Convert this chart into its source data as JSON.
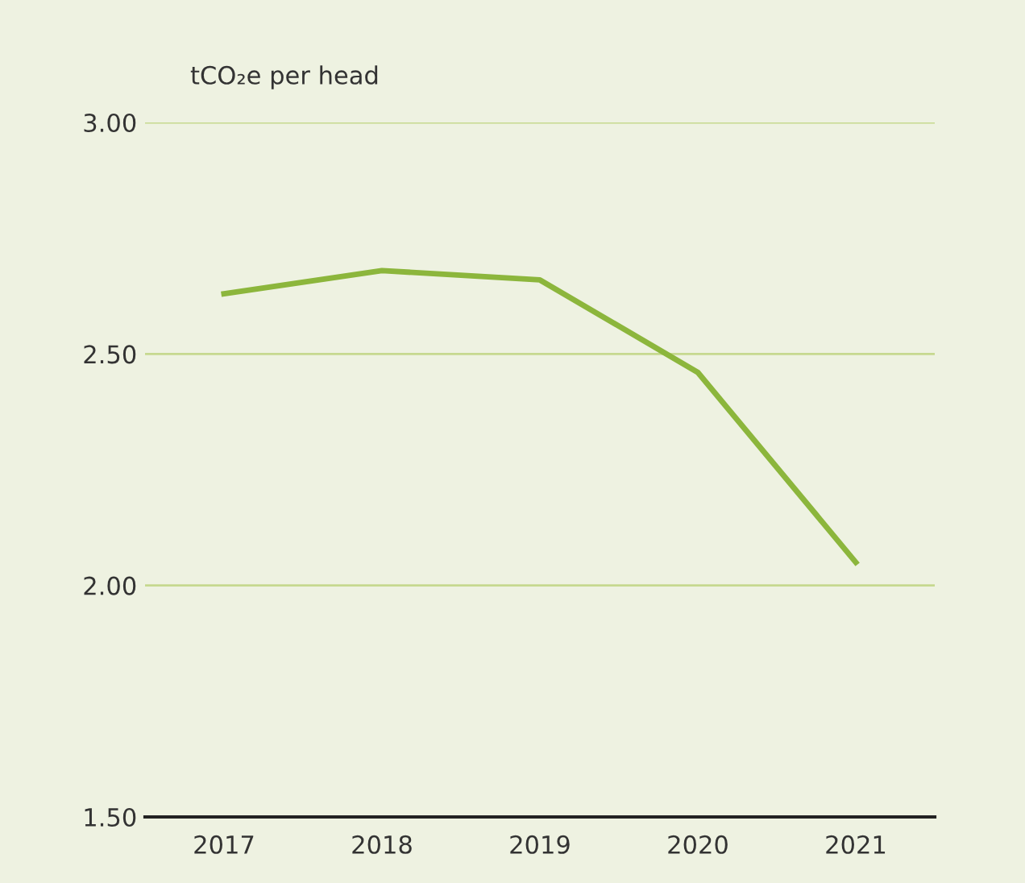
{
  "chart_data": {
    "type": "line",
    "ylabel": "tCO₂e per head",
    "categories": [
      "2017",
      "2018",
      "2019",
      "2020",
      "2021"
    ],
    "series": [
      {
        "color": "#8cb63c",
        "values": [
          2.63,
          2.68,
          2.66,
          2.46,
          2.05
        ]
      }
    ],
    "ylim": [
      1.5,
      3.0
    ],
    "yticks": [
      {
        "value": 1.5,
        "label": "1.50"
      },
      {
        "value": 2.0,
        "label": "2.00"
      },
      {
        "value": 2.5,
        "label": "2.50"
      },
      {
        "value": 3.0,
        "label": "3.00"
      }
    ],
    "grid": "y",
    "legend": false,
    "marker": "none",
    "line_style": "solid"
  }
}
